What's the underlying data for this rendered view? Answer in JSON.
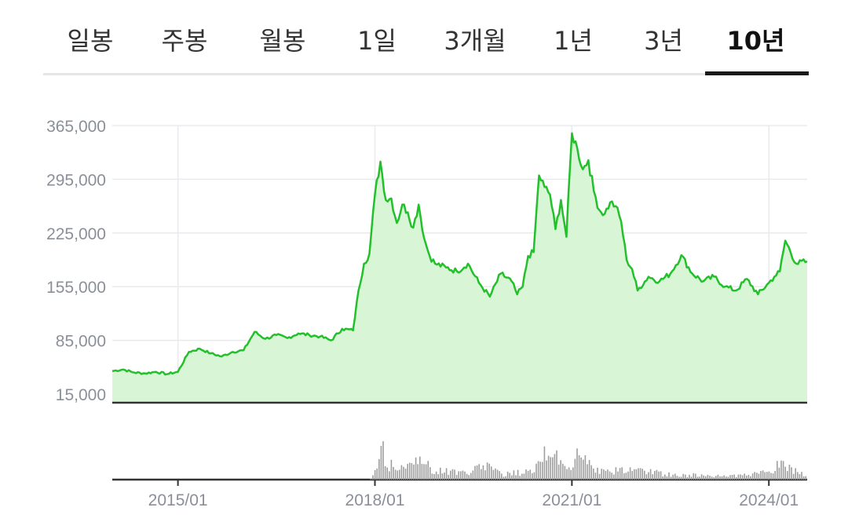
{
  "tabs": [
    {
      "label": "일봉",
      "active": false
    },
    {
      "label": "주봉",
      "active": false
    },
    {
      "label": "월봉",
      "active": false
    },
    {
      "label": "1일",
      "active": false
    },
    {
      "label": "3개월",
      "active": false
    },
    {
      "label": "1년",
      "active": false
    },
    {
      "label": "3년",
      "active": false
    },
    {
      "label": "10년",
      "active": true
    }
  ],
  "colors": {
    "line": "#22c02a",
    "area": "#d8f5d6",
    "volume": "#9e9e9e",
    "grid": "#e8eaee",
    "axis": "#333333"
  },
  "chart_data": {
    "type": "area",
    "ylim": [
      15000,
      365000
    ],
    "yticks": [
      15000,
      85000,
      155000,
      225000,
      295000,
      365000
    ],
    "ytick_labels": [
      "15,000",
      "85,000",
      "155,000",
      "225,000",
      "295,000",
      "365,000"
    ],
    "xlim": [
      "2014-01",
      "2024-08"
    ],
    "xticks": [
      "2015-01",
      "2018-01",
      "2021-01",
      "2024-01"
    ],
    "xtick_labels": [
      "2015/01",
      "2018/01",
      "2021/01",
      "2024/01"
    ],
    "grid": true,
    "price": {
      "x": [
        "2014-01",
        "2014-03",
        "2014-05",
        "2014-07",
        "2014-09",
        "2014-11",
        "2015-01",
        "2015-03",
        "2015-05",
        "2015-07",
        "2015-09",
        "2015-11",
        "2016-01",
        "2016-03",
        "2016-05",
        "2016-07",
        "2016-09",
        "2016-11",
        "2017-01",
        "2017-03",
        "2017-05",
        "2017-07",
        "2017-09",
        "2017-10",
        "2017-11",
        "2017-12",
        "2018-01",
        "2018-02",
        "2018-03",
        "2018-04",
        "2018-05",
        "2018-06",
        "2018-07",
        "2018-08",
        "2018-09",
        "2018-10",
        "2018-11",
        "2018-12",
        "2019-02",
        "2019-04",
        "2019-06",
        "2019-08",
        "2019-10",
        "2019-12",
        "2020-02",
        "2020-03",
        "2020-04",
        "2020-05",
        "2020-06",
        "2020-07",
        "2020-08",
        "2020-09",
        "2020-10",
        "2020-11",
        "2020-12",
        "2021-01",
        "2021-02",
        "2021-03",
        "2021-04",
        "2021-05",
        "2021-06",
        "2021-07",
        "2021-08",
        "2021-09",
        "2021-10",
        "2021-11",
        "2021-12",
        "2022-01",
        "2022-03",
        "2022-05",
        "2022-07",
        "2022-09",
        "2022-11",
        "2023-01",
        "2023-03",
        "2023-05",
        "2023-07",
        "2023-09",
        "2023-11",
        "2024-01",
        "2024-02",
        "2024-03",
        "2024-04",
        "2024-06",
        "2024-08"
      ],
      "values": [
        45000,
        47000,
        43000,
        42000,
        44000,
        41000,
        44000,
        70000,
        74000,
        68000,
        64000,
        70000,
        72000,
        96000,
        87000,
        92000,
        88000,
        94000,
        92000,
        90000,
        85000,
        100000,
        98000,
        150000,
        185000,
        198000,
        275000,
        318000,
        268000,
        270000,
        238000,
        262000,
        252000,
        232000,
        262000,
        218000,
        195000,
        185000,
        180000,
        175000,
        185000,
        160000,
        142000,
        172000,
        162000,
        145000,
        155000,
        195000,
        200000,
        300000,
        285000,
        275000,
        230000,
        268000,
        220000,
        355000,
        335000,
        308000,
        320000,
        280000,
        255000,
        250000,
        265000,
        260000,
        240000,
        190000,
        178000,
        150000,
        168000,
        162000,
        172000,
        196000,
        172000,
        162000,
        168000,
        155000,
        150000,
        165000,
        145000,
        160000,
        168000,
        175000,
        215000,
        185000,
        188000
      ]
    },
    "volume": {
      "ylim": [
        0,
        100
      ],
      "x": [
        "2014-01",
        "2014-07",
        "2015-01",
        "2015-07",
        "2016-01",
        "2016-07",
        "2017-01",
        "2017-07",
        "2017-12",
        "2018-01",
        "2018-02",
        "2018-03",
        "2018-06",
        "2018-09",
        "2018-12",
        "2019-03",
        "2019-06",
        "2019-09",
        "2019-12",
        "2020-03",
        "2020-06",
        "2020-07",
        "2020-08",
        "2020-09",
        "2020-10",
        "2020-12",
        "2021-01",
        "2021-02",
        "2021-03",
        "2021-06",
        "2021-09",
        "2021-12",
        "2022-03",
        "2022-06",
        "2022-09",
        "2022-12",
        "2023-03",
        "2023-06",
        "2023-09",
        "2023-12",
        "2024-01",
        "2024-03",
        "2024-06",
        "2024-08"
      ],
      "values": [
        0,
        0,
        0,
        0,
        0,
        0,
        0,
        0,
        0,
        18,
        80,
        38,
        22,
        50,
        20,
        18,
        16,
        32,
        12,
        16,
        22,
        35,
        95,
        40,
        55,
        28,
        20,
        60,
        45,
        25,
        20,
        22,
        18,
        12,
        10,
        10,
        10,
        8,
        10,
        16,
        20,
        35,
        18,
        12
      ]
    }
  }
}
